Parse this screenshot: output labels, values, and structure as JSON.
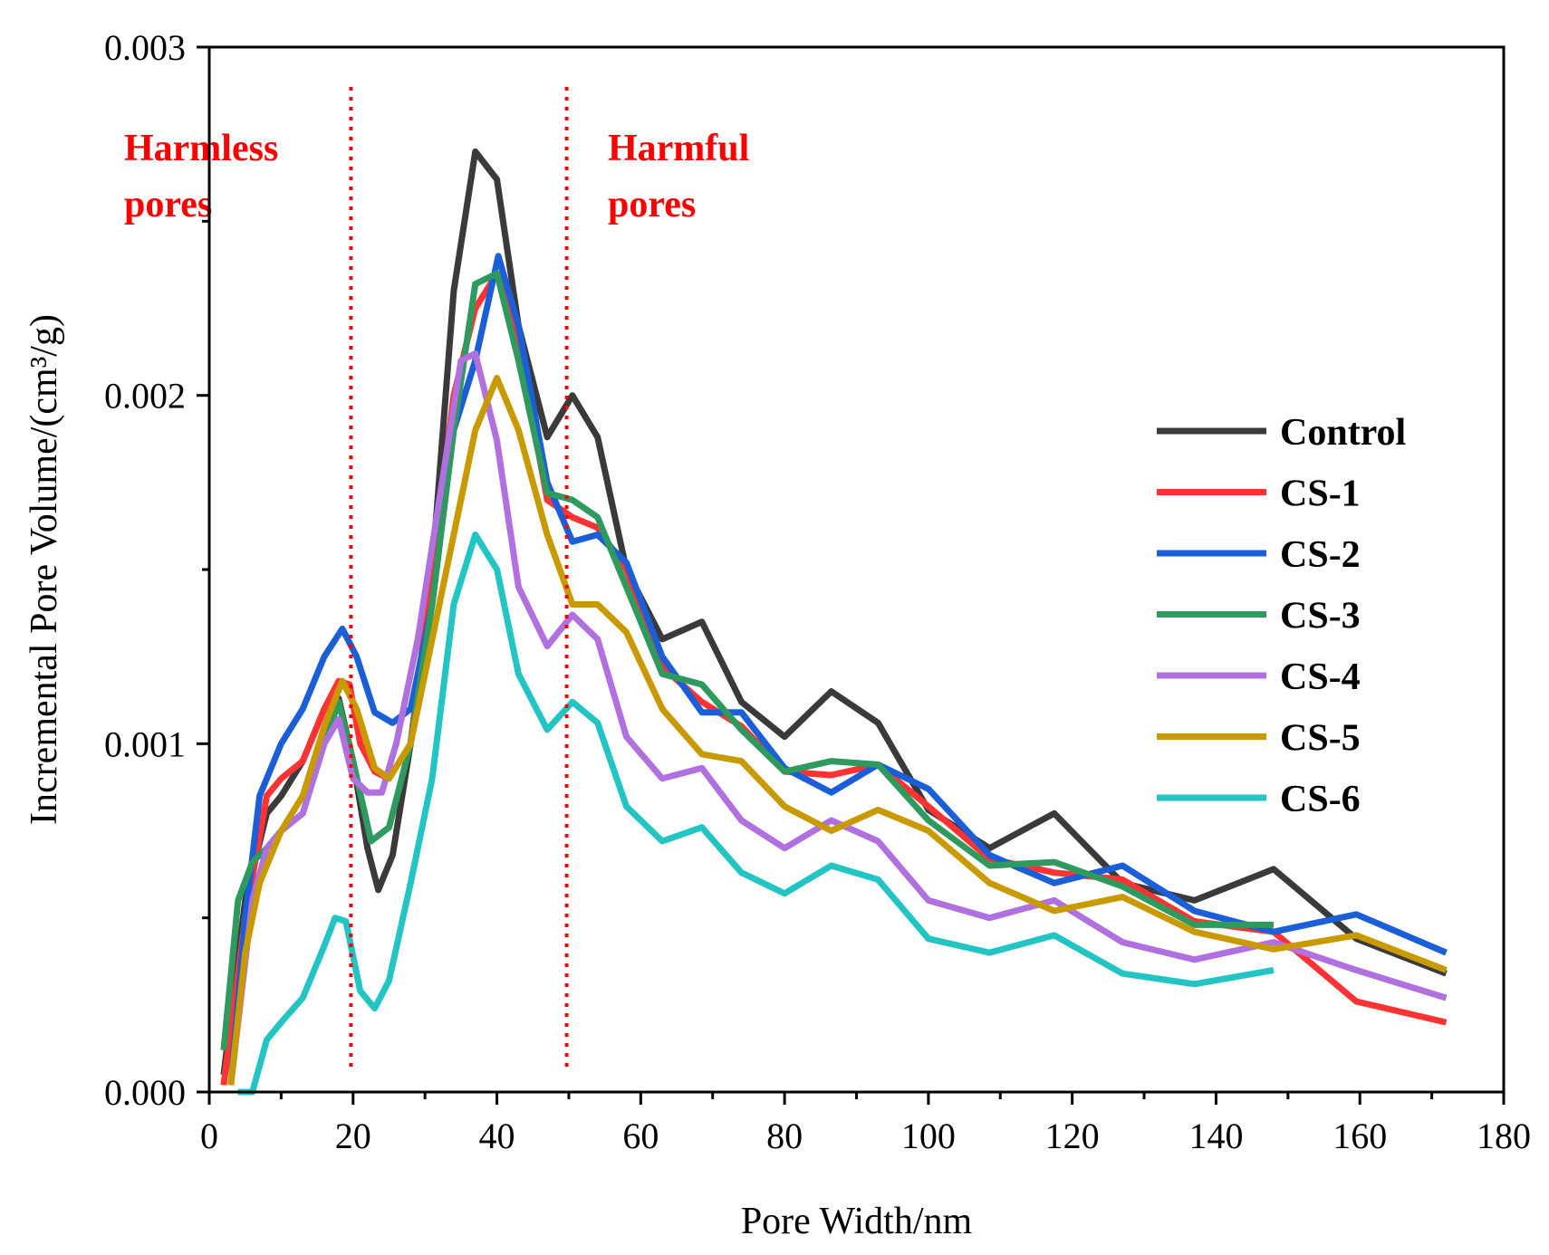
{
  "chart_data": {
    "type": "line",
    "title": "",
    "xlabel": "Pore Width/nm",
    "ylabel": "Incremental Pore Volume/(cm³/g)",
    "xlim": [
      0,
      180
    ],
    "ylim": [
      0,
      0.003
    ],
    "x_ticks": [
      0,
      20,
      40,
      60,
      80,
      100,
      120,
      140,
      160,
      180
    ],
    "x_tick_labels": [
      "0",
      "20",
      "40",
      "60",
      "80",
      "100",
      "120",
      "140",
      "160",
      "180"
    ],
    "y_ticks": [
      0,
      0.001,
      0.002,
      0.003
    ],
    "y_tick_labels": [
      "0.000",
      "0.001",
      "0.002",
      "0.003"
    ],
    "legend_position": "right",
    "regions": [
      {
        "x": 19.7,
        "label_lines": [
          "Harmless",
          "pores"
        ],
        "color": "#ff0000"
      },
      {
        "x": 49.7,
        "label_lines": [
          "Harmful",
          "pores"
        ],
        "color": "#ff0000"
      }
    ],
    "series": [
      {
        "name": "Control",
        "color": "#3a3a3a",
        "points": [
          [
            2,
            5e-05
          ],
          [
            5,
            0.00055
          ],
          [
            8,
            0.0008
          ],
          [
            10,
            0.00085
          ],
          [
            13,
            0.00095
          ],
          [
            16,
            0.0011
          ],
          [
            18,
            0.00113
          ],
          [
            20,
            0.00095
          ],
          [
            22,
            0.0007
          ],
          [
            23.5,
            0.00058
          ],
          [
            25.5,
            0.00068
          ],
          [
            28,
            0.001
          ],
          [
            31,
            0.0015
          ],
          [
            34,
            0.0023
          ],
          [
            37,
            0.0027
          ],
          [
            40,
            0.00262
          ],
          [
            43,
            0.0022
          ],
          [
            47,
            0.00188
          ],
          [
            50.5,
            0.002
          ],
          [
            54,
            0.00188
          ],
          [
            58,
            0.0015
          ],
          [
            63,
            0.0013
          ],
          [
            68.5,
            0.00135
          ],
          [
            74,
            0.00112
          ],
          [
            80,
            0.00102
          ],
          [
            86.5,
            0.00115
          ],
          [
            93,
            0.00106
          ],
          [
            100,
            0.00081
          ],
          [
            108.5,
            0.0007
          ],
          [
            117.5,
            0.0008
          ],
          [
            127,
            0.0006
          ],
          [
            137,
            0.00055
          ],
          [
            148,
            0.00064
          ],
          [
            159.5,
            0.00044
          ],
          [
            172,
            0.00034
          ]
        ]
      },
      {
        "name": "CS-1",
        "color": "#ff3333",
        "points": [
          [
            2,
            2e-05
          ],
          [
            5,
            0.0005
          ],
          [
            8,
            0.00085
          ],
          [
            10,
            0.0009
          ],
          [
            13,
            0.00095
          ],
          [
            16,
            0.0011
          ],
          [
            18,
            0.00118
          ],
          [
            19.5,
            0.00117
          ],
          [
            21,
            0.001
          ],
          [
            23,
            0.00092
          ],
          [
            25,
            0.0009
          ],
          [
            28,
            0.001
          ],
          [
            31,
            0.0015
          ],
          [
            34,
            0.002
          ],
          [
            37,
            0.00225
          ],
          [
            40,
            0.00235
          ],
          [
            43,
            0.00215
          ],
          [
            47,
            0.0017
          ],
          [
            50.5,
            0.00165
          ],
          [
            54,
            0.00162
          ],
          [
            58,
            0.0015
          ],
          [
            63,
            0.00122
          ],
          [
            68.5,
            0.00112
          ],
          [
            74,
            0.00105
          ],
          [
            80,
            0.00092
          ],
          [
            86.5,
            0.00091
          ],
          [
            93,
            0.00094
          ],
          [
            100,
            0.00082
          ],
          [
            108.5,
            0.00067
          ],
          [
            117.5,
            0.00063
          ],
          [
            127,
            0.00061
          ],
          [
            137,
            0.00049
          ],
          [
            148,
            0.00046
          ],
          [
            159.5,
            0.00026
          ],
          [
            172,
            0.0002
          ]
        ]
      },
      {
        "name": "CS-2",
        "color": "#1a5fd8",
        "points": [
          [
            3,
            2e-05
          ],
          [
            5,
            0.0005
          ],
          [
            7,
            0.00085
          ],
          [
            10,
            0.001
          ],
          [
            13,
            0.0011
          ],
          [
            16,
            0.00125
          ],
          [
            18.5,
            0.00133
          ],
          [
            20.5,
            0.00125
          ],
          [
            23,
            0.00109
          ],
          [
            25.5,
            0.00106
          ],
          [
            28,
            0.0011
          ],
          [
            31,
            0.0014
          ],
          [
            34,
            0.0019
          ],
          [
            37,
            0.0021
          ],
          [
            40.2,
            0.0024
          ],
          [
            43,
            0.0022
          ],
          [
            47,
            0.00175
          ],
          [
            50.5,
            0.00158
          ],
          [
            54,
            0.0016
          ],
          [
            58,
            0.00152
          ],
          [
            63,
            0.00125
          ],
          [
            68.5,
            0.00109
          ],
          [
            74,
            0.00109
          ],
          [
            80,
            0.00093
          ],
          [
            86.5,
            0.00086
          ],
          [
            93,
            0.00094
          ],
          [
            100,
            0.00087
          ],
          [
            108.5,
            0.00068
          ],
          [
            117.5,
            0.0006
          ],
          [
            127,
            0.00065
          ],
          [
            137,
            0.00052
          ],
          [
            148,
            0.00046
          ],
          [
            159.5,
            0.00051
          ],
          [
            172,
            0.0004
          ]
        ]
      },
      {
        "name": "CS-3",
        "color": "#2e9a5e",
        "points": [
          [
            2,
            0.00012
          ],
          [
            4,
            0.00055
          ],
          [
            6,
            0.00066
          ],
          [
            8,
            0.0007
          ],
          [
            10,
            0.00075
          ],
          [
            13,
            0.0008
          ],
          [
            16,
            0.001
          ],
          [
            18,
            0.00112
          ],
          [
            20,
            0.00095
          ],
          [
            22.5,
            0.00072
          ],
          [
            25,
            0.00076
          ],
          [
            28,
            0.001
          ],
          [
            31,
            0.0014
          ],
          [
            34,
            0.0019
          ],
          [
            37,
            0.00232
          ],
          [
            40,
            0.00235
          ],
          [
            43,
            0.0021
          ],
          [
            47,
            0.00172
          ],
          [
            50.5,
            0.0017
          ],
          [
            54,
            0.00165
          ],
          [
            58,
            0.00145
          ],
          [
            63,
            0.0012
          ],
          [
            68.5,
            0.00117
          ],
          [
            74,
            0.00104
          ],
          [
            80,
            0.00092
          ],
          [
            86.5,
            0.00095
          ],
          [
            93,
            0.00094
          ],
          [
            100,
            0.00078
          ],
          [
            108.5,
            0.00065
          ],
          [
            117.5,
            0.00066
          ],
          [
            127,
            0.00059
          ],
          [
            137,
            0.00048
          ],
          [
            148,
            0.00048
          ]
        ]
      },
      {
        "name": "CS-4",
        "color": "#b070e0",
        "points": [
          [
            3,
            2e-05
          ],
          [
            6,
            0.00055
          ],
          [
            8,
            0.0007
          ],
          [
            10,
            0.00075
          ],
          [
            13,
            0.0008
          ],
          [
            16,
            0.001
          ],
          [
            18,
            0.00107
          ],
          [
            20,
            0.0009
          ],
          [
            22,
            0.00086
          ],
          [
            24,
            0.00086
          ],
          [
            26,
            0.001
          ],
          [
            29,
            0.0013
          ],
          [
            32,
            0.0017
          ],
          [
            35,
            0.0021
          ],
          [
            37,
            0.00212
          ],
          [
            40,
            0.00187
          ],
          [
            43,
            0.00145
          ],
          [
            47,
            0.00128
          ],
          [
            50.5,
            0.00137
          ],
          [
            54,
            0.0013
          ],
          [
            58,
            0.00102
          ],
          [
            63,
            0.0009
          ],
          [
            68.5,
            0.00093
          ],
          [
            74,
            0.00078
          ],
          [
            80,
            0.0007
          ],
          [
            86.5,
            0.00078
          ],
          [
            93,
            0.00072
          ],
          [
            100,
            0.00055
          ],
          [
            108.5,
            0.0005
          ],
          [
            117.5,
            0.00055
          ],
          [
            127,
            0.00043
          ],
          [
            137,
            0.00038
          ],
          [
            148,
            0.00043
          ],
          [
            159.5,
            0.00035
          ],
          [
            172,
            0.00027
          ]
        ]
      },
      {
        "name": "CS-5",
        "color": "#c99a00",
        "points": [
          [
            3,
            2e-05
          ],
          [
            5,
            0.0004
          ],
          [
            7,
            0.0006
          ],
          [
            10,
            0.00075
          ],
          [
            13,
            0.00085
          ],
          [
            16,
            0.00105
          ],
          [
            18.5,
            0.00118
          ],
          [
            20.5,
            0.0011
          ],
          [
            23,
            0.00093
          ],
          [
            25,
            0.0009
          ],
          [
            28,
            0.001
          ],
          [
            31,
            0.0013
          ],
          [
            34,
            0.0016
          ],
          [
            37,
            0.0019
          ],
          [
            40,
            0.00205
          ],
          [
            43,
            0.0019
          ],
          [
            47,
            0.0016
          ],
          [
            50.5,
            0.0014
          ],
          [
            54,
            0.0014
          ],
          [
            58,
            0.00132
          ],
          [
            63,
            0.0011
          ],
          [
            68.5,
            0.00097
          ],
          [
            74,
            0.00095
          ],
          [
            80,
            0.00082
          ],
          [
            86.5,
            0.00075
          ],
          [
            93,
            0.00081
          ],
          [
            100,
            0.00075
          ],
          [
            108.5,
            0.0006
          ],
          [
            117.5,
            0.00052
          ],
          [
            127,
            0.00056
          ],
          [
            137,
            0.00046
          ],
          [
            148,
            0.00041
          ],
          [
            159.5,
            0.00045
          ],
          [
            172,
            0.00035
          ]
        ]
      },
      {
        "name": "CS-6",
        "color": "#22c4c4",
        "points": [
          [
            4,
            0.0
          ],
          [
            6,
            0.0
          ],
          [
            8,
            0.00015
          ],
          [
            10,
            0.0002
          ],
          [
            13,
            0.00027
          ],
          [
            16,
            0.00042
          ],
          [
            17.5,
            0.0005
          ],
          [
            19,
            0.00049
          ],
          [
            21,
            0.00029
          ],
          [
            23,
            0.00024
          ],
          [
            25,
            0.00032
          ],
          [
            28,
            0.0006
          ],
          [
            31,
            0.0009
          ],
          [
            34,
            0.0014
          ],
          [
            37,
            0.0016
          ],
          [
            40,
            0.0015
          ],
          [
            43,
            0.0012
          ],
          [
            47,
            0.00104
          ],
          [
            50.5,
            0.00112
          ],
          [
            54,
            0.00106
          ],
          [
            58,
            0.00082
          ],
          [
            63,
            0.00072
          ],
          [
            68.5,
            0.00076
          ],
          [
            74,
            0.00063
          ],
          [
            80,
            0.00057
          ],
          [
            86.5,
            0.00065
          ],
          [
            93,
            0.00061
          ],
          [
            100,
            0.00044
          ],
          [
            108.5,
            0.0004
          ],
          [
            117.5,
            0.00045
          ],
          [
            127,
            0.00034
          ],
          [
            137,
            0.00031
          ],
          [
            148,
            0.00035
          ]
        ]
      }
    ]
  }
}
